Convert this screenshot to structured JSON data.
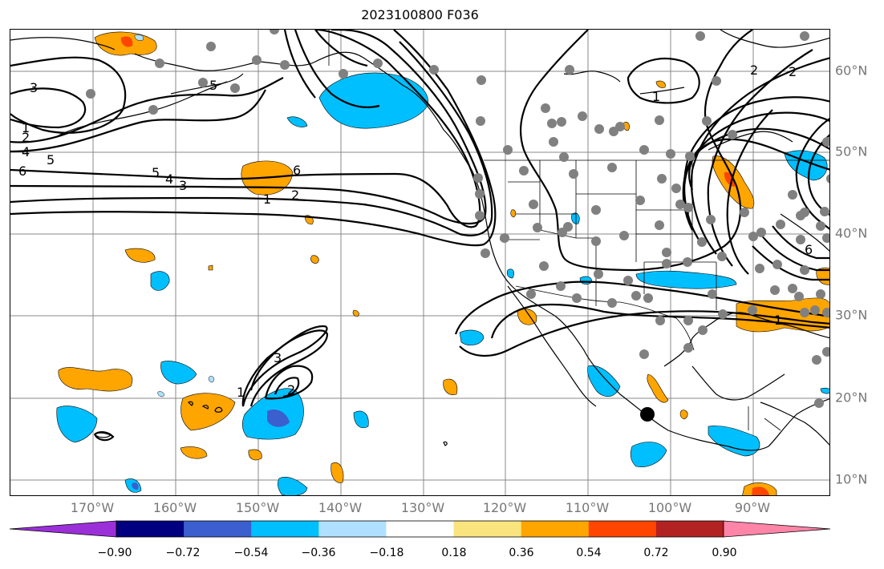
{
  "title": "2023100800 F036",
  "lon_labels": [
    "170°W",
    "160°W",
    "150°W",
    "140°W",
    "130°W",
    "120°W",
    "110°W",
    "100°W",
    "90°W"
  ],
  "lat_labels": [
    "60°N",
    "50°N",
    "40°N",
    "30°N",
    "20°N",
    "10°N"
  ],
  "colorbar": {
    "colors": [
      "#9b30d9",
      "#000080",
      "#3b5fce",
      "#00bfff",
      "#b0e0ff",
      "#ffffff",
      "#f9e47e",
      "#ffa500",
      "#ff4500",
      "#b22222",
      "#ff85a8"
    ],
    "tick_labels": [
      "−0.90",
      "−0.72",
      "−0.54",
      "−0.36",
      "−0.18",
      "0.18",
      "0.36",
      "0.54",
      "0.72",
      "0.90"
    ]
  },
  "contour_labels": [
    "1",
    "2",
    "3",
    "4",
    "5",
    "6"
  ],
  "colors": {
    "land_grid": "#888888",
    "station_dot": "#808080",
    "contour": "#000000",
    "positive_fill": "#ffa500",
    "positive_strong": "#ff4500",
    "negative_fill": "#00bfff",
    "negative_strong": "#3b5fce"
  }
}
